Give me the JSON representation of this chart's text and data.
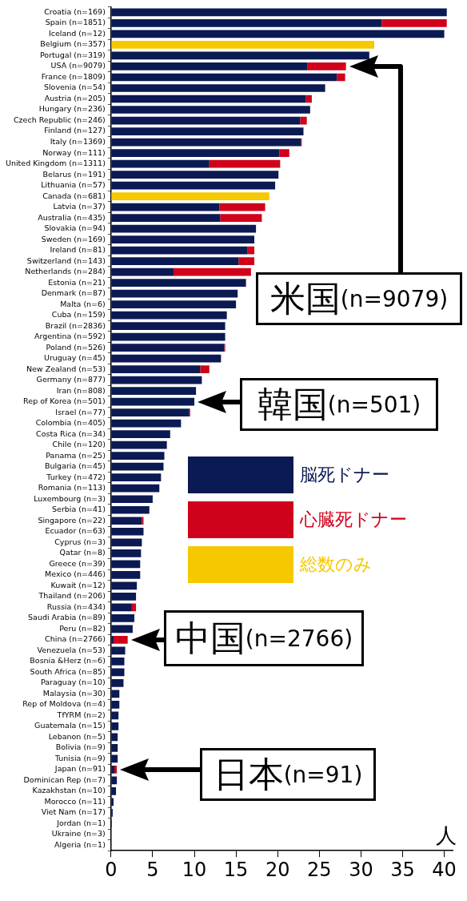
{
  "chart_data": {
    "type": "bar",
    "orientation": "horizontal",
    "stacked": true,
    "xlabel": "人",
    "categories": [
      "Croatia (n=169)",
      "Spain (n=1851)",
      "Iceland (n=12)",
      "Belgium (n=357)",
      "Portugal (n=319)",
      "USA (n=9079)",
      "France (n=1809)",
      "Slovenia (n=54)",
      "Austria (n=205)",
      "Hungary (n=236)",
      "Czech Republic (n=246)",
      "Finland (n=127)",
      "Italy (n=1369)",
      "Norway (n=111)",
      "United Kingdom (n=1311)",
      "Belarus (n=191)",
      "Lithuania (n=57)",
      "Canada (n=681)",
      "Latvia (n=37)",
      "Australia (n=435)",
      "Slovakia (n=94)",
      "Sweden (n=169)",
      "Ireland (n=81)",
      "Switzerland (n=143)",
      "Netherlands (n=284)",
      "Estonia (n=21)",
      "Denmark (n=87)",
      "Malta (n=6)",
      "Cuba (n=159)",
      "Brazil (n=2836)",
      "Argentina (n=592)",
      "Poland (n=526)",
      "Uruguay (n=45)",
      "New Zealand (n=53)",
      "Germany (n=877)",
      "Iran (n=808)",
      "Rep of Korea (n=501)",
      "Israel (n=77)",
      "Colombia (n=405)",
      "Costa Rica (n=34)",
      "Chile (n=120)",
      "Panama (n=25)",
      "Bulgaria (n=45)",
      "Turkey (n=472)",
      "Romania (n=113)",
      "Luxembourg (n=3)",
      "Serbia (n=41)",
      "Singapore (n=22)",
      "Ecuador (n=63)",
      "Cyprus (n=3)",
      "Qatar (n=8)",
      "Greece (n=39)",
      "Mexico (n=446)",
      "Kuwait (n=12)",
      "Thailand (n=206)",
      "Russia (n=434)",
      "Saudi Arabia (n=89)",
      "Peru (n=82)",
      "China (n=2766)",
      "Venezuela (n=53)",
      "Bosnia &Herz (n=6)",
      "South Africa (n=85)",
      "Paraguay (n=10)",
      "Malaysia (n=30)",
      "Rep of Moldova (n=4)",
      "TfYRM (n=2)",
      "Guatemala (n=15)",
      "Lebanon (n=5)",
      "Bolivia (n=9)",
      "Tunisia (n=9)",
      "Japan (n=91)",
      "Dominican Rep (n=7)",
      "Kazakhstan (n=10)",
      "Morocco (n=11)",
      "Viet Nam (n=17)",
      "Jordan (n=1)",
      "Ukraine (n=3)",
      "Algeria (n=1)"
    ],
    "series": [
      {
        "name": "脳死ドナー",
        "color": "#0b1a52",
        "values": [
          40.3,
          32.5,
          40.0,
          null,
          31.0,
          23.6,
          27.1,
          25.7,
          23.4,
          23.9,
          22.7,
          23.1,
          22.8,
          20.2,
          11.8,
          20.1,
          19.7,
          null,
          13.0,
          13.1,
          17.4,
          17.2,
          16.4,
          15.3,
          7.5,
          16.2,
          15.2,
          15.0,
          13.9,
          13.7,
          13.7,
          13.6,
          13.2,
          10.7,
          10.9,
          10.2,
          10.0,
          9.4,
          8.4,
          7.1,
          6.7,
          6.4,
          6.3,
          6.0,
          5.8,
          5.0,
          4.6,
          3.7,
          3.9,
          3.7,
          3.6,
          3.5,
          3.5,
          3.1,
          3.0,
          2.5,
          2.8,
          2.6,
          0.3,
          1.7,
          1.6,
          1.6,
          1.5,
          1.0,
          1.0,
          0.9,
          0.9,
          0.8,
          0.8,
          0.8,
          0.4,
          0.7,
          0.6,
          0.3,
          0.2,
          0.1,
          0,
          0
        ]
      },
      {
        "name": "心臓死ドナー",
        "color": "#d0021b",
        "values": [
          null,
          7.8,
          null,
          null,
          null,
          4.6,
          1.0,
          null,
          0.7,
          null,
          0.8,
          null,
          0.1,
          1.2,
          8.5,
          null,
          null,
          null,
          5.5,
          5.0,
          null,
          null,
          0.8,
          1.9,
          9.3,
          null,
          null,
          null,
          null,
          null,
          null,
          0.1,
          null,
          1.1,
          null,
          null,
          null,
          0.1,
          null,
          null,
          null,
          null,
          null,
          null,
          null,
          null,
          null,
          0.2,
          null,
          null,
          null,
          null,
          null,
          null,
          null,
          0.5,
          null,
          null,
          1.7,
          null,
          null,
          null,
          null,
          null,
          null,
          null,
          null,
          null,
          null,
          null,
          0.3,
          null,
          null,
          null,
          null,
          null,
          null,
          null
        ]
      },
      {
        "name": "総数のみ",
        "color": "#f5c800",
        "values": [
          null,
          null,
          null,
          31.6,
          null,
          null,
          null,
          null,
          null,
          null,
          null,
          null,
          null,
          null,
          null,
          null,
          null,
          19.0,
          null,
          null,
          null,
          null,
          null,
          null,
          null,
          null,
          null,
          null,
          null,
          null,
          null,
          null,
          null,
          null,
          null,
          null,
          null,
          null,
          null,
          null,
          null,
          null,
          null,
          null,
          null,
          null,
          null,
          null,
          null,
          null,
          null,
          null,
          null,
          null,
          null,
          null,
          null,
          null,
          null,
          null,
          null,
          null,
          null,
          null,
          null,
          null,
          null,
          null,
          null,
          null,
          null,
          null,
          null,
          null,
          null,
          null,
          null,
          null
        ]
      }
    ],
    "xlim": [
      0,
      41
    ],
    "xticks": [
      0,
      5,
      10,
      15,
      20,
      25,
      30,
      35,
      40
    ],
    "grid": false,
    "legend": "right",
    "annotations": [
      "米国(n=9079)",
      {
        "text": "韓国(n=501)",
        "x": 10.0,
        "y": "Rep of Korea (n=501)"
      },
      {
        "text": "中国(n=2766)",
        "x": 2.0,
        "y": "China (n=2766)"
      },
      {
        "text": "日本(n=91)",
        "x": 0.7,
        "y": "Japan (n=91)"
      }
    ]
  }
}
